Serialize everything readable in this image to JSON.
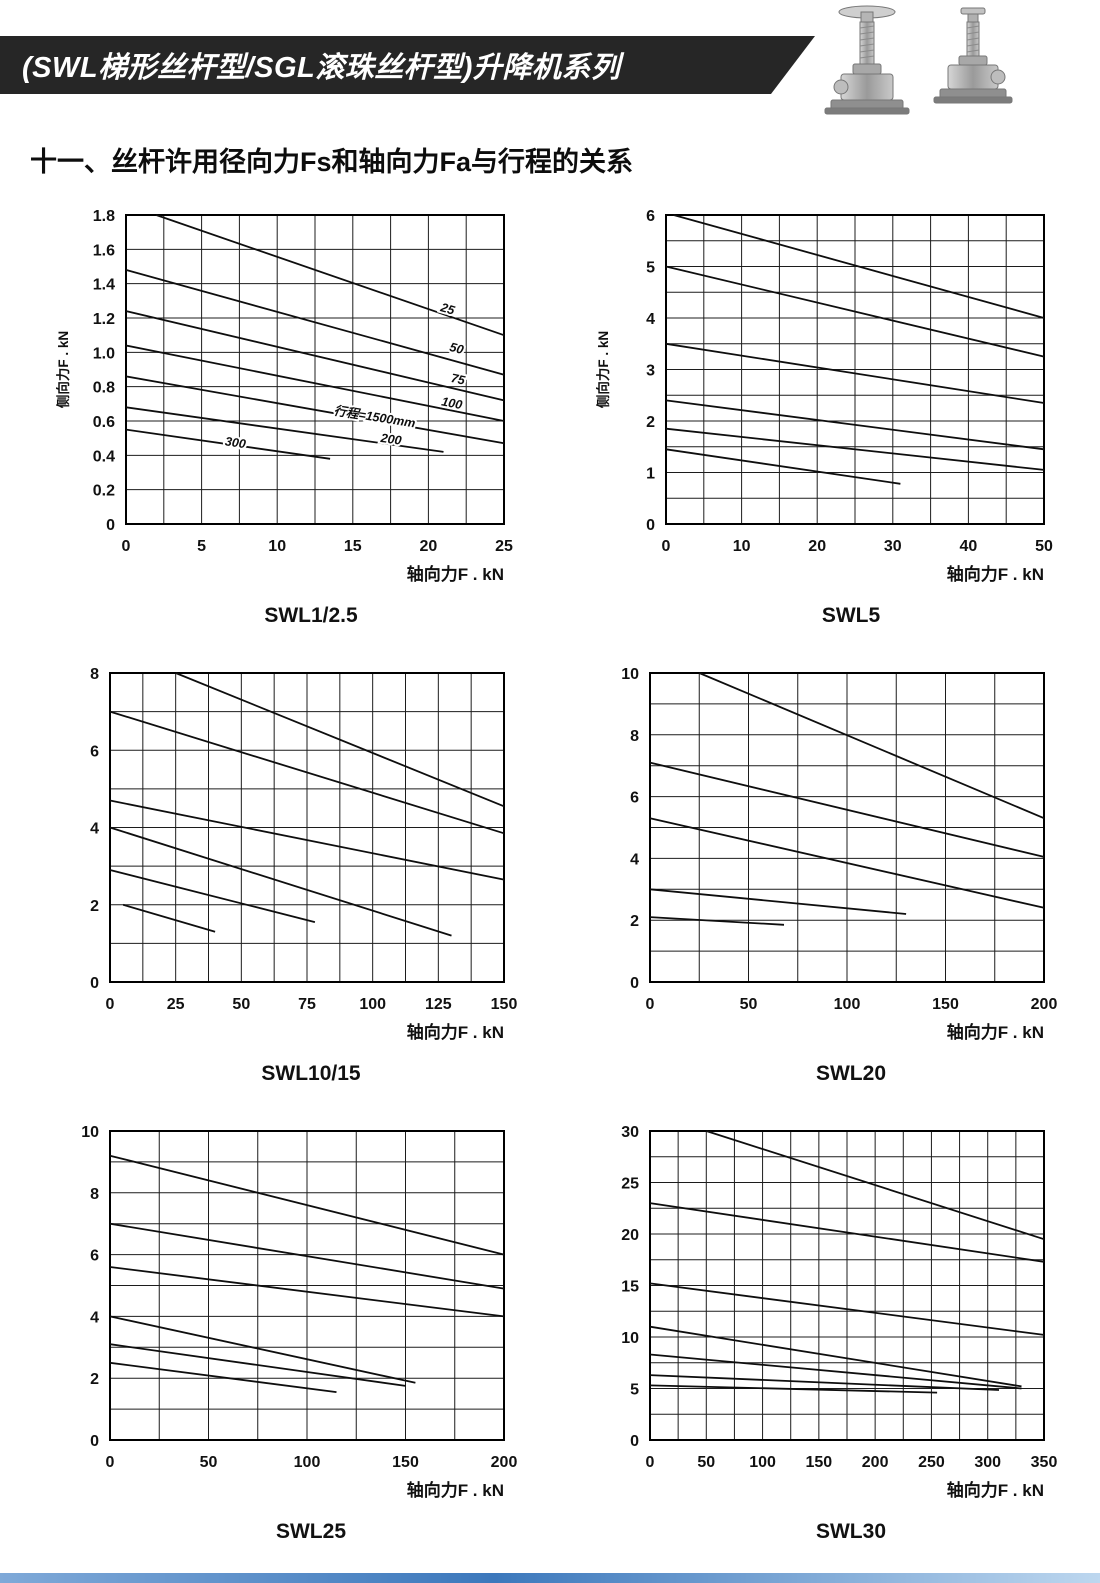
{
  "page": {
    "banner_title": "(SWL梯形丝杆型/SGL滚珠丝杆型)升降机系列",
    "banner_bg": "#262626",
    "section_title": "十一、丝杆许用径向力Fs和轴向力Fa与行程的关系",
    "footer_gradient": [
      "#7fa9d8",
      "#3c78bc",
      "#bdd7ef"
    ],
    "illustration": "screw-jack-machines"
  },
  "chart_data": [
    {
      "name": "SWL1/2.5",
      "type": "line",
      "title": "SWL1/2.5",
      "xlabel": "轴向力F . kN",
      "ylabel": "侧向力F . kN",
      "xlim": [
        0,
        25
      ],
      "ylim": [
        0,
        1.8
      ],
      "xticks": [
        0,
        5,
        10,
        15,
        20,
        25
      ],
      "xtick_labels": [
        "0",
        "5",
        "10",
        "15",
        "20",
        "25"
      ],
      "yticks": [
        0,
        0.2,
        0.4,
        0.6,
        0.8,
        1.0,
        1.2,
        1.4,
        1.6,
        1.8
      ],
      "ytick_labels": [
        "0",
        "0.2",
        "0.4",
        "0.6",
        "0.8",
        "1.0",
        "1.2",
        "1.4",
        "1.6",
        "1.8"
      ],
      "xgrid_step": 2.5,
      "ygrid_step": 0.2,
      "grid": true,
      "legend": "none",
      "series": [
        {
          "points": [
            [
              2,
              1.8
            ],
            [
              25,
              1.1
            ]
          ]
        },
        {
          "points": [
            [
              0,
              1.48
            ],
            [
              25,
              0.87
            ]
          ]
        },
        {
          "points": [
            [
              0,
              1.24
            ],
            [
              25,
              0.72
            ]
          ]
        },
        {
          "points": [
            [
              0,
              1.04
            ],
            [
              25,
              0.6
            ]
          ]
        },
        {
          "points": [
            [
              0,
              0.86
            ],
            [
              25,
              0.47
            ]
          ]
        },
        {
          "points": [
            [
              0,
              0.68
            ],
            [
              21,
              0.42
            ]
          ]
        },
        {
          "points": [
            [
              0,
              0.55
            ],
            [
              13.5,
              0.38
            ]
          ]
        }
      ],
      "annotations": [
        {
          "text": "25",
          "x": 21.2,
          "y": 1.23,
          "angle": 16
        },
        {
          "text": "50",
          "x": 21.8,
          "y": 1.0,
          "angle": 14
        },
        {
          "text": "75",
          "x": 21.9,
          "y": 0.82,
          "angle": 12
        },
        {
          "text": "100",
          "x": 21.5,
          "y": 0.68,
          "angle": 11
        },
        {
          "text": "行程=1500mm",
          "x": 16.4,
          "y": 0.6,
          "angle": 9
        },
        {
          "text": "200",
          "x": 17.5,
          "y": 0.47,
          "angle": 8
        },
        {
          "text": "300",
          "x": 7.2,
          "y": 0.45,
          "angle": 8
        }
      ]
    },
    {
      "name": "SWL5",
      "type": "line",
      "title": "SWL5",
      "xlabel": "轴向力F . kN",
      "ylabel": "侧向力F . kN",
      "xlim": [
        0,
        50
      ],
      "ylim": [
        0,
        6
      ],
      "xticks": [
        0,
        10,
        20,
        30,
        40,
        50
      ],
      "xtick_labels": [
        "0",
        "10",
        "20",
        "30",
        "40",
        "50"
      ],
      "yticks": [
        0,
        1,
        2,
        3,
        4,
        5,
        6
      ],
      "ytick_labels": [
        "0",
        "1",
        "2",
        "3",
        "4",
        "5",
        "6"
      ],
      "xgrid_step": 5,
      "ygrid_step": 0.5,
      "grid": true,
      "legend": "none",
      "series": [
        {
          "points": [
            [
              1,
              6
            ],
            [
              50,
              4.0
            ]
          ]
        },
        {
          "points": [
            [
              0,
              5.0
            ],
            [
              50,
              3.25
            ]
          ]
        },
        {
          "points": [
            [
              0,
              3.5
            ],
            [
              50,
              2.35
            ]
          ]
        },
        {
          "points": [
            [
              0,
              2.4
            ],
            [
              50,
              1.45
            ]
          ]
        },
        {
          "points": [
            [
              0,
              1.85
            ],
            [
              50,
              1.05
            ]
          ]
        },
        {
          "points": [
            [
              0,
              1.45
            ],
            [
              31,
              0.78
            ]
          ]
        }
      ],
      "annotations": []
    },
    {
      "name": "SWL10/15",
      "type": "line",
      "title": "SWL10/15",
      "xlabel": "轴向力F . kN",
      "ylabel": "",
      "xlim": [
        0,
        150
      ],
      "ylim": [
        0,
        8
      ],
      "xticks": [
        0,
        25,
        50,
        75,
        100,
        125,
        150
      ],
      "xtick_labels": [
        "0",
        "25",
        "50",
        "75",
        "100",
        "125",
        "150"
      ],
      "yticks": [
        0,
        2,
        4,
        6,
        8
      ],
      "ytick_labels": [
        "0",
        "2",
        "4",
        "6",
        "8"
      ],
      "xgrid_step": 12.5,
      "ygrid_step": 1,
      "grid": true,
      "legend": "none",
      "series": [
        {
          "points": [
            [
              25,
              8
            ],
            [
              150,
              4.55
            ]
          ]
        },
        {
          "points": [
            [
              0,
              7.0
            ],
            [
              150,
              3.85
            ]
          ]
        },
        {
          "points": [
            [
              0,
              4.7
            ],
            [
              150,
              2.65
            ]
          ]
        },
        {
          "points": [
            [
              0,
              4.0
            ],
            [
              130,
              1.2
            ]
          ]
        },
        {
          "points": [
            [
              0,
              2.9
            ],
            [
              78,
              1.55
            ]
          ]
        },
        {
          "points": [
            [
              5,
              2.0
            ],
            [
              40,
              1.3
            ]
          ]
        }
      ],
      "annotations": []
    },
    {
      "name": "SWL20",
      "type": "line",
      "title": "SWL20",
      "xlabel": "轴向力F . kN",
      "ylabel": "",
      "xlim": [
        0,
        200
      ],
      "ylim": [
        0,
        10
      ],
      "xticks": [
        0,
        50,
        100,
        150,
        200
      ],
      "xtick_labels": [
        "0",
        "50",
        "100",
        "150",
        "200"
      ],
      "yticks": [
        0,
        2,
        4,
        6,
        8,
        10
      ],
      "ytick_labels": [
        "0",
        "2",
        "4",
        "6",
        "8",
        "10"
      ],
      "xgrid_step": 25,
      "ygrid_step": 1,
      "grid": true,
      "legend": "none",
      "series": [
        {
          "points": [
            [
              25,
              10
            ],
            [
              200,
              5.3
            ]
          ]
        },
        {
          "points": [
            [
              0,
              7.1
            ],
            [
              200,
              4.05
            ]
          ]
        },
        {
          "points": [
            [
              0,
              5.3
            ],
            [
              200,
              2.4
            ]
          ]
        },
        {
          "points": [
            [
              0,
              3.0
            ],
            [
              130,
              2.2
            ]
          ]
        },
        {
          "points": [
            [
              0,
              2.1
            ],
            [
              68,
              1.85
            ]
          ]
        }
      ],
      "annotations": []
    },
    {
      "name": "SWL25",
      "type": "line",
      "title": "SWL25",
      "xlabel": "轴向力F . kN",
      "ylabel": "",
      "xlim": [
        0,
        200
      ],
      "ylim": [
        0,
        10
      ],
      "xticks": [
        0,
        50,
        100,
        150,
        200
      ],
      "xtick_labels": [
        "0",
        "50",
        "100",
        "150",
        "200"
      ],
      "yticks": [
        0,
        2,
        4,
        6,
        8,
        10
      ],
      "ytick_labels": [
        "0",
        "2",
        "4",
        "6",
        "8",
        "10"
      ],
      "xgrid_step": 25,
      "ygrid_step": 1,
      "grid": true,
      "legend": "none",
      "series": [
        {
          "points": [
            [
              0,
              9.2
            ],
            [
              200,
              6.0
            ]
          ]
        },
        {
          "points": [
            [
              0,
              7.0
            ],
            [
              200,
              4.9
            ]
          ]
        },
        {
          "points": [
            [
              0,
              5.6
            ],
            [
              200,
              4.0
            ]
          ]
        },
        {
          "points": [
            [
              0,
              4.0
            ],
            [
              155,
              1.85
            ]
          ]
        },
        {
          "points": [
            [
              0,
              3.1
            ],
            [
              150,
              1.75
            ]
          ]
        },
        {
          "points": [
            [
              0,
              2.5
            ],
            [
              115,
              1.55
            ]
          ]
        }
      ],
      "annotations": []
    },
    {
      "name": "SWL30",
      "type": "line",
      "title": "SWL30",
      "xlabel": "轴向力F . kN",
      "ylabel": "",
      "xlim": [
        0,
        350
      ],
      "ylim": [
        0,
        30
      ],
      "xticks": [
        0,
        50,
        100,
        150,
        200,
        250,
        300,
        350
      ],
      "xtick_labels": [
        "0",
        "50",
        "100",
        "150",
        "200",
        "250",
        "300",
        "350"
      ],
      "yticks": [
        0,
        5,
        10,
        15,
        20,
        25,
        30
      ],
      "ytick_labels": [
        "0",
        "5",
        "10",
        "15",
        "20",
        "25",
        "30"
      ],
      "xgrid_step": 25,
      "ygrid_step": 2.5,
      "grid": true,
      "legend": "none",
      "series": [
        {
          "points": [
            [
              50,
              30
            ],
            [
              350,
              19.5
            ]
          ]
        },
        {
          "points": [
            [
              0,
              23
            ],
            [
              350,
              17.3
            ]
          ]
        },
        {
          "points": [
            [
              0,
              15.2
            ],
            [
              350,
              10.2
            ]
          ]
        },
        {
          "points": [
            [
              0,
              11.0
            ],
            [
              330,
              5.2
            ]
          ]
        },
        {
          "points": [
            [
              0,
              8.3
            ],
            [
              330,
              5.0
            ]
          ]
        },
        {
          "points": [
            [
              0,
              6.3
            ],
            [
              310,
              4.85
            ]
          ]
        },
        {
          "points": [
            [
              0,
              5.3
            ],
            [
              255,
              4.6
            ]
          ]
        }
      ],
      "annotations": []
    }
  ]
}
